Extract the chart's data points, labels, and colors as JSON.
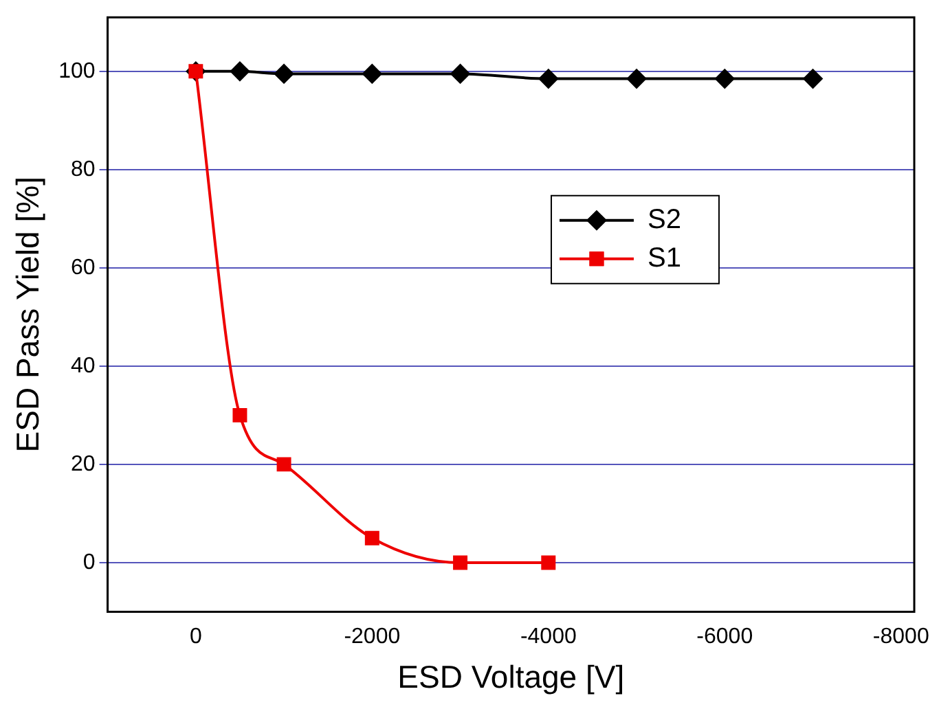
{
  "chart_data": {
    "type": "line",
    "xlabel": "ESD Voltage [V]",
    "ylabel": "ESD Pass Yield [%]",
    "xlim": [
      1000,
      -8150
    ],
    "xticks": [
      0,
      -2000,
      -4000,
      -6000,
      -8000
    ],
    "ylim": [
      -10,
      111
    ],
    "yticks": [
      0,
      20,
      40,
      60,
      80,
      100
    ],
    "grid": "y",
    "legend": "right",
    "line_style": "solid",
    "series": [
      {
        "name": "S2",
        "color": "#000000",
        "marker": "diamond",
        "x": [
          0,
          -500,
          -1000,
          -2000,
          -3000,
          -4000,
          -5000,
          -6000,
          -7000
        ],
        "values": [
          100,
          100,
          99.5,
          99.5,
          99.5,
          98.5,
          98.5,
          98.5,
          98.5
        ]
      },
      {
        "name": "S1",
        "color": "#ee0000",
        "marker": "square",
        "x": [
          0,
          -500,
          -1000,
          -2000,
          -3000,
          -4000
        ],
        "values": [
          100,
          30,
          20,
          5,
          0,
          0
        ]
      }
    ]
  }
}
